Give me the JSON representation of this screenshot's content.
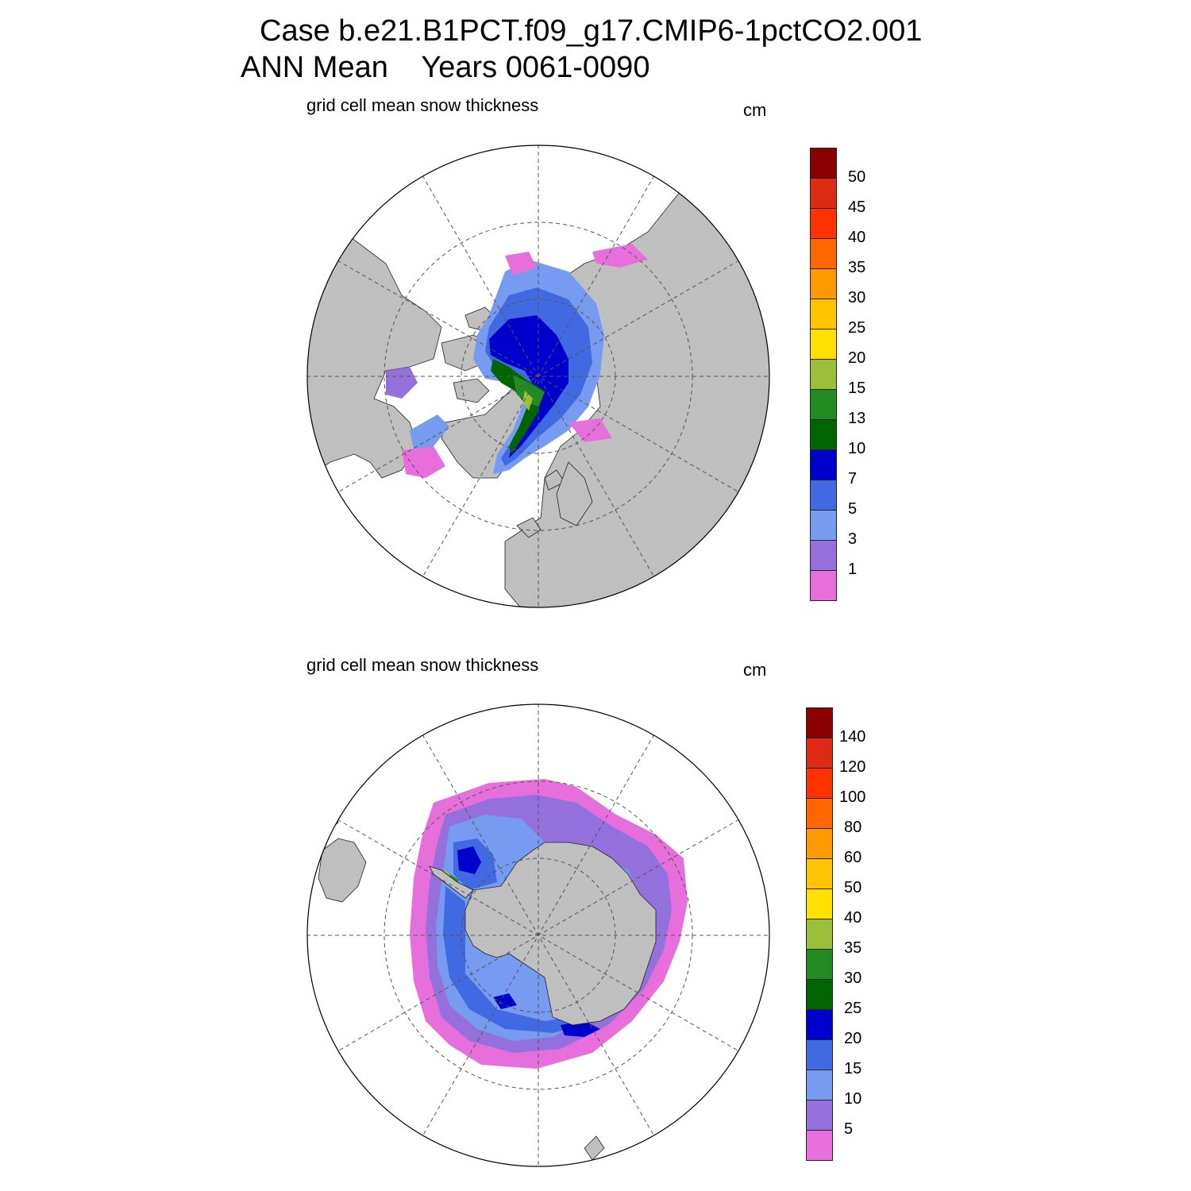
{
  "header": {
    "title_line1": "Case b.e21.B1PCT.f09_g17.CMIP6-1pctCO2.001",
    "title_line2": "ANN Mean    Years 0061-0090"
  },
  "panels": [
    {
      "id": "north",
      "hemisphere": "Northern Hemisphere (polar stereographic)",
      "variable_label": "grid cell mean snow thickness",
      "units": "cm",
      "colorbar": {
        "colors": [
          "#e66fdc",
          "#9370db",
          "#779bf0",
          "#4169e1",
          "#0000cd",
          "#006400",
          "#228b22",
          "#9bbf3a",
          "#ffe000",
          "#ffc300",
          "#ff9900",
          "#ff6600",
          "#ff3300",
          "#dd2b16",
          "#8b0000"
        ],
        "levels": [
          "1",
          "3",
          "5",
          "7",
          "10",
          "13",
          "15",
          "20",
          "25",
          "30",
          "35",
          "40",
          "45",
          "50"
        ]
      }
    },
    {
      "id": "south",
      "hemisphere": "Southern Hemisphere (polar stereographic)",
      "variable_label": "grid cell mean snow thickness",
      "units": "cm",
      "colorbar": {
        "colors": [
          "#e66fdc",
          "#9370db",
          "#779bf0",
          "#4169e1",
          "#0000cd",
          "#006400",
          "#228b22",
          "#9bbf3a",
          "#ffe000",
          "#ffc300",
          "#ff9900",
          "#ff6600",
          "#ff3300",
          "#dd2b16",
          "#8b0000"
        ],
        "levels": [
          "5",
          "10",
          "15",
          "20",
          "25",
          "30",
          "35",
          "40",
          "50",
          "60",
          "80",
          "100",
          "120",
          "140"
        ]
      }
    }
  ],
  "colors": {
    "land": "#bfbfbf",
    "ocean": "#ffffff",
    "grid": "#555555"
  }
}
